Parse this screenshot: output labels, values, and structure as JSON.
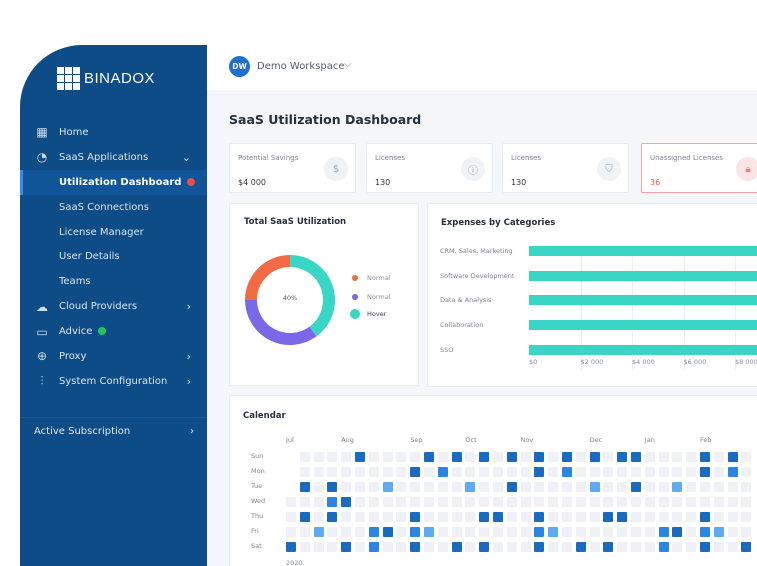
{
  "brand": {
    "name": "BINADOX"
  },
  "workspace": {
    "initials": "DW",
    "name": "Demo Workspace"
  },
  "sidebar": {
    "items": [
      {
        "label": "Home",
        "icon": "grid-icon"
      },
      {
        "label": "SaaS Applications",
        "icon": "pie-chart-icon",
        "chevron": "down"
      },
      {
        "label": "Utilization Dashboard",
        "active": true,
        "badge_color": "#f04b4b"
      },
      {
        "label": "SaaS Connections"
      },
      {
        "label": "License Manager"
      },
      {
        "label": "User Details"
      },
      {
        "label": "Teams"
      },
      {
        "label": "Cloud Providers",
        "icon": "cloud-icon",
        "chevron": "right"
      },
      {
        "label": "Advice",
        "icon": "chat-icon",
        "badge_color": "#22c55e"
      },
      {
        "label": "Proxy",
        "icon": "globe-icon",
        "chevron": "right"
      },
      {
        "label": "System Configuration",
        "icon": "sliders-icon",
        "chevron": "right"
      }
    ],
    "footer": {
      "label": "Active Subscription"
    }
  },
  "page": {
    "title": "SaaS Utilization Dashboard"
  },
  "stats": [
    {
      "title": "Potential Savings",
      "value": "$4 000",
      "icon": "piggy-bank-icon"
    },
    {
      "title": "Licenses",
      "value": "130",
      "icon": "alert-icon"
    },
    {
      "title": "Licenses",
      "value": "130",
      "icon": "shield-key-icon"
    },
    {
      "title": "Unassigned Licenses",
      "value": "36",
      "icon": "lock-icon",
      "warning": true
    }
  ],
  "colors": {
    "accent": "#1d6fd0",
    "sidebar": "#0d4c87",
    "teal": "#3ad6c5",
    "orange": "#f26b45",
    "purple": "#7b68e8",
    "warning": "#ef5b5b"
  },
  "chart_data": [
    {
      "type": "pie",
      "title": "Total SaaS Utilization",
      "center_label": "40%",
      "slices": [
        {
          "name": "Hover",
          "value": 40,
          "color": "#3ad6c5"
        },
        {
          "name": "Normal",
          "value": 35,
          "color": "#7b68e8"
        },
        {
          "name": "Normal",
          "value": 25,
          "color": "#f26b45"
        }
      ],
      "legend": [
        {
          "label": "Normal",
          "color": "#f26b45"
        },
        {
          "label": "Normal",
          "color": "#7b68e8"
        },
        {
          "label": "Hover",
          "color": "#3ad6c5"
        }
      ],
      "legend_position": "right"
    },
    {
      "type": "bar",
      "orientation": "horizontal",
      "title": "Expenses by Categories",
      "categories": [
        "CRM, Sales, Marketing",
        "Software Development",
        "Data & Analysis",
        "Collaboration",
        "SSO"
      ],
      "values": [
        9000,
        9000,
        9000,
        9000,
        9000
      ],
      "xticks": [
        "$0",
        "$2 000",
        "$4 000",
        "$6 000",
        "$8 000"
      ],
      "xlim": [
        0,
        10000
      ],
      "grid": true,
      "color": "#3ad6c5"
    }
  ],
  "calendar": {
    "title": "Calendar",
    "year": "2020",
    "days": [
      "Sun",
      "Mon",
      "Tue",
      "Wed",
      "Thu",
      "Fri",
      "Sat"
    ],
    "months": [
      {
        "label": "Jul",
        "col": 0
      },
      {
        "label": "Aug",
        "col": 4
      },
      {
        "label": "Sep",
        "col": 9
      },
      {
        "label": "Oct",
        "col": 13
      },
      {
        "label": "Nov",
        "col": 17
      },
      {
        "label": "Dec",
        "col": 22
      },
      {
        "label": "Jan",
        "col": 26
      },
      {
        "label": "Feb",
        "col": 30
      }
    ],
    "level_colors": [
      "#eff1f6",
      "#5eaaf5",
      "#2a86e2",
      "#1a6abf"
    ],
    "rows": [
      [
        -1,
        0,
        0,
        0,
        0,
        3,
        0,
        0,
        0,
        0,
        3,
        0,
        3,
        0,
        3,
        0,
        3,
        0,
        3,
        0,
        3,
        0,
        3,
        0,
        3,
        3,
        0,
        0,
        0,
        0,
        3,
        0,
        3,
        0
      ],
      [
        -1,
        0,
        0,
        0,
        0,
        0,
        0,
        0,
        0,
        3,
        0,
        2,
        0,
        0,
        0,
        0,
        0,
        0,
        3,
        0,
        2,
        0,
        0,
        0,
        0,
        0,
        0,
        0,
        0,
        0,
        3,
        0,
        2,
        0
      ],
      [
        -1,
        3,
        0,
        3,
        0,
        0,
        0,
        1,
        0,
        0,
        0,
        0,
        0,
        1,
        0,
        0,
        3,
        0,
        0,
        0,
        0,
        0,
        1,
        0,
        0,
        3,
        0,
        0,
        1,
        0,
        0,
        0,
        0,
        0
      ],
      [
        0,
        0,
        0,
        2,
        3,
        0,
        0,
        0,
        0,
        0,
        0,
        0,
        0,
        0,
        0,
        0,
        0,
        0,
        0,
        0,
        0,
        0,
        0,
        0,
        0,
        0,
        0,
        0,
        0,
        0,
        0,
        0,
        0,
        0
      ],
      [
        0,
        3,
        0,
        3,
        0,
        0,
        0,
        0,
        0,
        3,
        0,
        0,
        0,
        0,
        3,
        3,
        0,
        0,
        3,
        0,
        0,
        0,
        0,
        3,
        3,
        0,
        0,
        0,
        0,
        0,
        3,
        0,
        0,
        0
      ],
      [
        0,
        0,
        1,
        0,
        0,
        0,
        2,
        3,
        0,
        2,
        1,
        0,
        0,
        0,
        0,
        0,
        0,
        0,
        2,
        1,
        0,
        0,
        0,
        0,
        0,
        0,
        0,
        2,
        3,
        0,
        2,
        1,
        0,
        0
      ],
      [
        3,
        0,
        0,
        0,
        3,
        0,
        2,
        0,
        0,
        3,
        0,
        0,
        3,
        0,
        3,
        0,
        0,
        0,
        3,
        0,
        0,
        3,
        0,
        3,
        0,
        0,
        0,
        2,
        0,
        0,
        3,
        0,
        0,
        3
      ]
    ]
  }
}
